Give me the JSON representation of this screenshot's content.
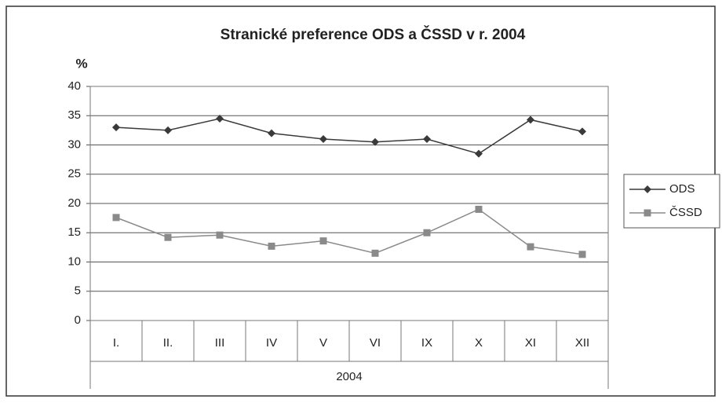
{
  "chart_data": {
    "type": "line",
    "title": "Stranické preference ODS a ČSSD v r. 2004",
    "y_label": "%",
    "x_label": "2004",
    "categories": [
      "I.",
      "II.",
      "III",
      "IV",
      "V",
      "VI",
      "IX",
      "X",
      "XI",
      "XII"
    ],
    "series": [
      {
        "name": "ODS",
        "color": "#3a3a3a",
        "marker": "diamond",
        "values": [
          33,
          32.5,
          34.5,
          32,
          31,
          30.5,
          31,
          28.5,
          34.3,
          32.3
        ]
      },
      {
        "name": "ČSSD",
        "color": "#8a8a8a",
        "marker": "square",
        "values": [
          17.6,
          14.2,
          14.6,
          12.7,
          13.6,
          11.5,
          15,
          19,
          12.6,
          11.3
        ]
      }
    ],
    "ylim": [
      0,
      40
    ],
    "yticks": [
      0,
      5,
      10,
      15,
      20,
      25,
      30,
      35,
      40
    ],
    "grid": true,
    "legend": "right"
  }
}
